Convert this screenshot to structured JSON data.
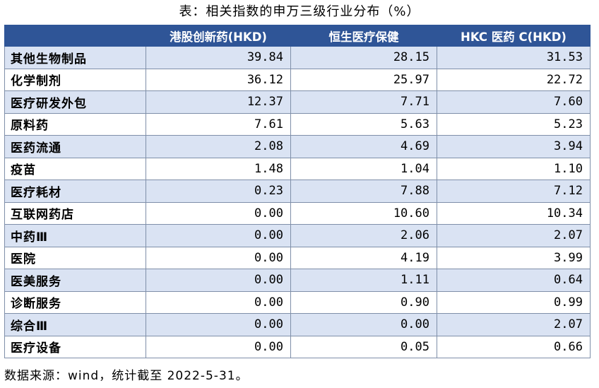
{
  "title": "表：相关指数的申万三级行业分布（%）",
  "table": {
    "headers": [
      "",
      "港股创新药(HKD)",
      "恒生医疗保健",
      "HKC 医药 C(HKD)"
    ],
    "rows": [
      {
        "name": "其他生物制品",
        "v1": "39.84",
        "v2": "28.15",
        "v3": "31.53"
      },
      {
        "name": "化学制剂",
        "v1": "36.12",
        "v2": "25.97",
        "v3": "22.72"
      },
      {
        "name": "医疗研发外包",
        "v1": "12.37",
        "v2": "7.71",
        "v3": "7.60"
      },
      {
        "name": "原料药",
        "v1": "7.61",
        "v2": "5.63",
        "v3": "5.23"
      },
      {
        "name": "医药流通",
        "v1": "2.08",
        "v2": "4.69",
        "v3": "3.94"
      },
      {
        "name": "疫苗",
        "v1": "1.48",
        "v2": "1.04",
        "v3": "1.10"
      },
      {
        "name": "医疗耗材",
        "v1": "0.23",
        "v2": "7.88",
        "v3": "7.12"
      },
      {
        "name": "互联网药店",
        "v1": "0.00",
        "v2": "10.60",
        "v3": "10.34"
      },
      {
        "name": "中药Ⅲ",
        "v1": "0.00",
        "v2": "2.06",
        "v3": "2.07"
      },
      {
        "name": "医院",
        "v1": "0.00",
        "v2": "4.19",
        "v3": "3.99"
      },
      {
        "name": "医美服务",
        "v1": "0.00",
        "v2": "1.11",
        "v3": "0.64"
      },
      {
        "name": "诊断服务",
        "v1": "0.00",
        "v2": "0.90",
        "v3": "0.99"
      },
      {
        "name": "综合Ⅲ",
        "v1": "0.00",
        "v2": "0.00",
        "v3": "2.07"
      },
      {
        "name": "医疗设备",
        "v1": "0.00",
        "v2": "0.05",
        "v3": "0.66"
      }
    ]
  },
  "source": "数据来源：wind，统计截至 2022-5-31。",
  "colors": {
    "header_bg": "#2f5597",
    "stripe": "#dae3f3",
    "border": "#7f8fa9"
  }
}
